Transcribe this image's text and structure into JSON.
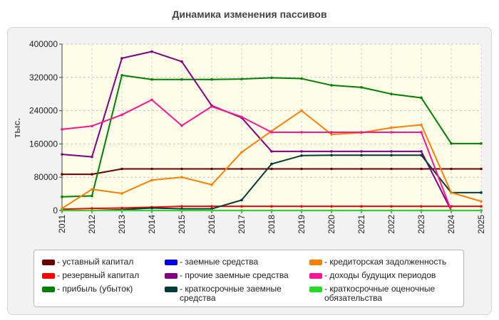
{
  "colors": {
    "panel": "#f2f2f2",
    "plot_bg": "#fdfde8",
    "axis": "#444444"
  },
  "chart_data": {
    "type": "line",
    "title": "Динамика изменения пассивов",
    "ylabel": "тыс.",
    "xlabel": "",
    "ylim": [
      0,
      400000
    ],
    "yticks": [
      0,
      80000,
      160000,
      240000,
      320000,
      400000
    ],
    "x": [
      "2011",
      "2012",
      "2013",
      "2014",
      "2015",
      "2016",
      "2017",
      "2018",
      "2019",
      "2020",
      "2021",
      "2022",
      "2023",
      "2024",
      "2025"
    ],
    "grid": true,
    "legend_position": "bottom",
    "series": [
      {
        "name": "уставный капитал",
        "color": "#6b0000",
        "values": [
          87000,
          87000,
          100000,
          100000,
          100000,
          100000,
          100000,
          100000,
          100000,
          100000,
          100000,
          100000,
          100000,
          100000,
          100000
        ]
      },
      {
        "name": "резервный капитал",
        "color": "#ff0000",
        "values": [
          3000,
          5000,
          6000,
          8000,
          10000,
          10000,
          10000,
          10000,
          10000,
          10000,
          10000,
          10000,
          10000,
          10000,
          10000
        ]
      },
      {
        "name": "прибыль (убыток)",
        "color": "#008000",
        "values": [
          33000,
          35000,
          325000,
          315000,
          315000,
          315000,
          316000,
          319000,
          317000,
          301000,
          296000,
          280000,
          271000,
          161000,
          161000
        ]
      },
      {
        "name": "заемные средства",
        "color": "#0000ff",
        "values": [
          0,
          0,
          0,
          0,
          0,
          0,
          0,
          0,
          0,
          0,
          0,
          0,
          0,
          0,
          0
        ]
      },
      {
        "name": "прочие заемные средства",
        "color": "#800080",
        "values": [
          135000,
          129000,
          366000,
          382000,
          358000,
          252000,
          223000,
          142000,
          142000,
          142000,
          142000,
          142000,
          142000,
          0,
          0
        ]
      },
      {
        "name": "краткосрочные заемные средства",
        "color": "#003c3c",
        "values": [
          0,
          0,
          2000,
          6000,
          4000,
          4000,
          25000,
          112000,
          132000,
          133000,
          133000,
          133000,
          133000,
          43000,
          43000
        ]
      },
      {
        "name": "кредиторская задолженность",
        "color": "#ff8000",
        "values": [
          5000,
          51000,
          41000,
          73000,
          80000,
          62000,
          140000,
          191000,
          240000,
          183000,
          187000,
          199000,
          206000,
          43000,
          22000
        ]
      },
      {
        "name": "доходы будущих периодов",
        "color": "#ff1493",
        "values": [
          195000,
          203000,
          230000,
          266000,
          204000,
          250000,
          225000,
          188000,
          188000,
          188000,
          188000,
          188000,
          188000,
          0,
          0
        ]
      },
      {
        "name": "краткосрочные оценочные обязательства",
        "color": "#22dd22",
        "values": [
          0,
          0,
          0,
          0,
          0,
          0,
          0,
          0,
          0,
          0,
          0,
          0,
          0,
          0,
          0
        ]
      }
    ]
  }
}
